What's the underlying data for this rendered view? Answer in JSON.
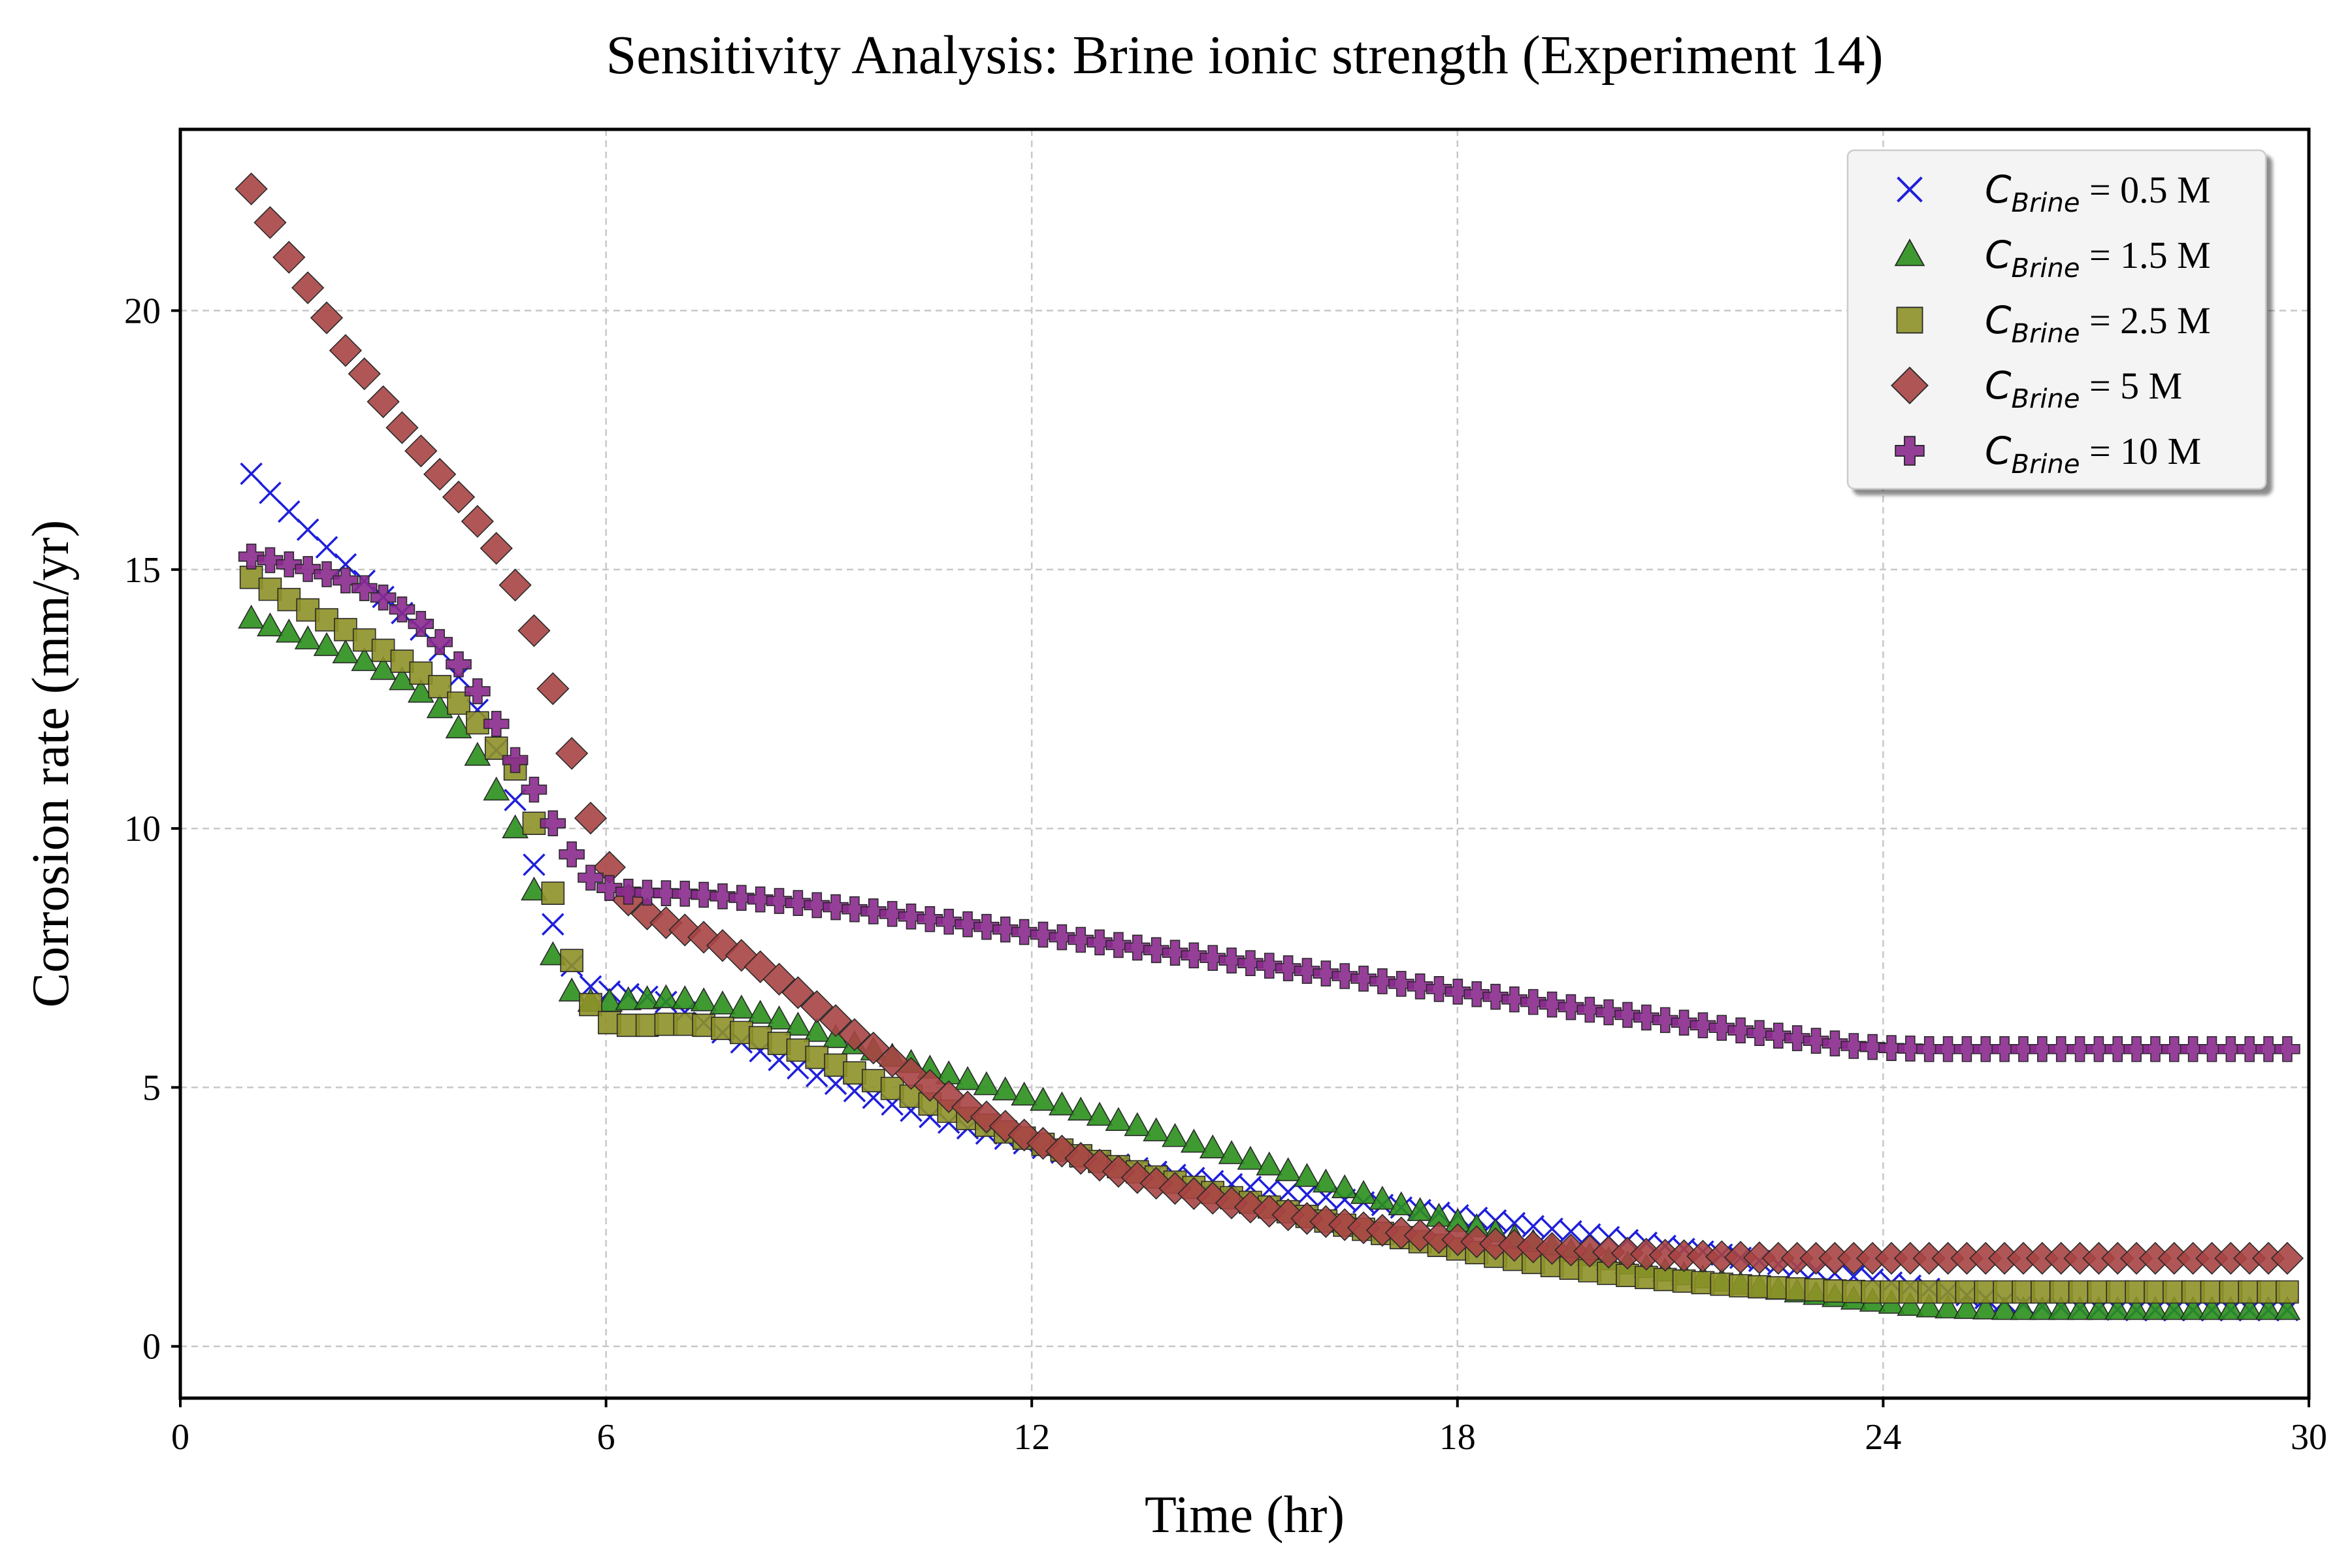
{
  "chart_data": {
    "type": "scatter",
    "title": "Sensitivity Analysis: Brine ionic strength (Experiment 14)",
    "xlabel": "Time (hr)",
    "ylabel": "Corrosion rate (mm/yr)",
    "xlim": [
      0,
      30
    ],
    "ylim": [
      -1,
      23.5
    ],
    "xticks": [
      0,
      6,
      12,
      18,
      24,
      30
    ],
    "yticks": [
      0,
      5,
      10,
      15,
      20
    ],
    "grid": true,
    "legend_position": "top-right",
    "legend_symbol": "C",
    "legend_subscript": "Brine",
    "x_start": 1,
    "x_step": 0.2657,
    "series": [
      {
        "name": "C_Brine = 0.5 M",
        "label_value": " = 0.5 M",
        "marker": "x",
        "color": "#1f1fdc",
        "values": [
          16.85,
          16.48,
          16.12,
          15.77,
          15.43,
          15.1,
          14.78,
          14.47,
          14.16,
          13.84,
          13.44,
          12.93,
          12.29,
          11.51,
          10.55,
          9.3,
          8.15,
          7.35,
          6.95,
          6.85,
          6.8,
          6.75,
          6.65,
          6.45,
          6.25,
          6.06,
          5.87,
          5.7,
          5.53,
          5.37,
          5.22,
          5.07,
          4.93,
          4.8,
          4.67,
          4.55,
          4.43,
          4.32,
          4.21,
          4.11,
          4.01,
          3.92,
          3.83,
          3.74,
          3.66,
          3.58,
          3.51,
          3.44,
          3.37,
          3.31,
          3.25,
          3.19,
          3.13,
          3.08,
          3.03,
          2.98,
          2.93,
          2.88,
          2.83,
          2.78,
          2.73,
          2.68,
          2.63,
          2.58,
          2.53,
          2.48,
          2.43,
          2.38,
          2.32,
          2.27,
          2.22,
          2.16,
          2.11,
          2.05,
          2.0,
          1.94,
          1.88,
          1.83,
          1.77,
          1.71,
          1.65,
          1.59,
          1.53,
          1.47,
          1.41,
          1.35,
          1.29,
          1.23,
          1.17,
          1.11,
          1.05,
          0.99,
          0.93,
          0.87,
          0.82,
          0.77,
          0.75,
          0.73,
          0.72,
          0.71,
          0.7,
          0.7,
          0.7,
          0.7,
          0.7,
          0.7,
          0.7,
          0.7,
          0.7
        ]
      },
      {
        "name": "C_Brine = 1.5 M",
        "label_value": " = 1.5 M",
        "marker": "triangle",
        "color": "#2a8f1c",
        "values": [
          14.05,
          13.9,
          13.78,
          13.65,
          13.52,
          13.38,
          13.23,
          13.06,
          12.86,
          12.62,
          12.32,
          11.93,
          11.4,
          10.73,
          10.0,
          8.8,
          7.55,
          6.85,
          6.65,
          6.65,
          6.68,
          6.7,
          6.72,
          6.7,
          6.66,
          6.6,
          6.52,
          6.42,
          6.31,
          6.19,
          6.07,
          5.95,
          5.83,
          5.71,
          5.59,
          5.47,
          5.36,
          5.25,
          5.14,
          5.04,
          4.94,
          4.84,
          4.74,
          4.65,
          4.55,
          4.45,
          4.35,
          4.25,
          4.15,
          4.04,
          3.93,
          3.82,
          3.71,
          3.6,
          3.49,
          3.38,
          3.27,
          3.16,
          3.05,
          2.94,
          2.83,
          2.72,
          2.61,
          2.5,
          2.4,
          2.3,
          2.2,
          2.1,
          2.0,
          1.91,
          1.82,
          1.74,
          1.66,
          1.58,
          1.51,
          1.44,
          1.37,
          1.31,
          1.25,
          1.19,
          1.14,
          1.09,
          1.04,
          0.99,
          0.95,
          0.9,
          0.86,
          0.82,
          0.78,
          0.75,
          0.73,
          0.72,
          0.71,
          0.7,
          0.7,
          0.7,
          0.7,
          0.7,
          0.7,
          0.7,
          0.7,
          0.7,
          0.7,
          0.7,
          0.7,
          0.7,
          0.7,
          0.7,
          0.7
        ]
      },
      {
        "name": "C_Brine = 2.5 M",
        "label_value": " = 2.5 M",
        "marker": "square",
        "color": "#8e9127",
        "values": [
          14.85,
          14.62,
          14.42,
          14.22,
          14.03,
          13.84,
          13.64,
          13.44,
          13.23,
          13.0,
          12.74,
          12.42,
          12.04,
          11.55,
          11.15,
          10.1,
          8.75,
          7.45,
          6.6,
          6.25,
          6.2,
          6.2,
          6.22,
          6.22,
          6.2,
          6.14,
          6.06,
          5.96,
          5.85,
          5.72,
          5.58,
          5.43,
          5.28,
          5.13,
          4.98,
          4.83,
          4.68,
          4.54,
          4.4,
          4.27,
          4.14,
          4.02,
          3.9,
          3.79,
          3.68,
          3.57,
          3.47,
          3.37,
          3.27,
          3.17,
          3.07,
          2.97,
          2.87,
          2.78,
          2.69,
          2.6,
          2.51,
          2.42,
          2.34,
          2.26,
          2.18,
          2.1,
          2.02,
          1.95,
          1.88,
          1.81,
          1.74,
          1.68,
          1.62,
          1.56,
          1.51,
          1.46,
          1.41,
          1.37,
          1.33,
          1.29,
          1.26,
          1.23,
          1.2,
          1.17,
          1.15,
          1.13,
          1.11,
          1.09,
          1.07,
          1.06,
          1.05,
          1.05,
          1.05,
          1.05,
          1.05,
          1.05,
          1.05,
          1.05,
          1.05,
          1.05,
          1.05,
          1.05,
          1.05,
          1.05,
          1.05,
          1.05,
          1.05,
          1.05,
          1.05,
          1.05,
          1.05,
          1.05,
          1.05
        ]
      },
      {
        "name": "C_Brine = 5 M",
        "label_value": " = 5 M",
        "marker": "diamond",
        "color": "#a84444",
        "values": [
          22.35,
          21.7,
          21.03,
          20.44,
          19.86,
          19.23,
          18.78,
          18.24,
          17.74,
          17.29,
          16.84,
          16.4,
          15.93,
          15.41,
          14.7,
          13.82,
          12.7,
          11.45,
          10.2,
          9.25,
          8.62,
          8.35,
          8.18,
          8.04,
          7.9,
          7.74,
          7.55,
          7.33,
          7.09,
          6.83,
          6.56,
          6.29,
          6.02,
          5.76,
          5.51,
          5.27,
          5.04,
          4.82,
          4.62,
          4.43,
          4.25,
          4.08,
          3.92,
          3.77,
          3.63,
          3.5,
          3.38,
          3.26,
          3.15,
          3.05,
          2.95,
          2.86,
          2.77,
          2.69,
          2.61,
          2.54,
          2.47,
          2.41,
          2.35,
          2.29,
          2.24,
          2.19,
          2.14,
          2.1,
          2.06,
          2.02,
          1.98,
          1.95,
          1.92,
          1.89,
          1.86,
          1.84,
          1.82,
          1.8,
          1.78,
          1.76,
          1.75,
          1.74,
          1.73,
          1.72,
          1.71,
          1.7,
          1.7,
          1.7,
          1.7,
          1.7,
          1.7,
          1.7,
          1.7,
          1.7,
          1.7,
          1.7,
          1.7,
          1.7,
          1.7,
          1.7,
          1.7,
          1.7,
          1.7,
          1.7,
          1.7,
          1.7,
          1.7,
          1.7,
          1.7,
          1.7,
          1.7,
          1.7,
          1.7
        ]
      },
      {
        "name": "C_Brine = 10 M",
        "label_value": " = 10 M",
        "marker": "plus",
        "color": "#8a2a8e",
        "values": [
          15.25,
          15.18,
          15.1,
          15.01,
          14.91,
          14.79,
          14.64,
          14.46,
          14.23,
          13.95,
          13.6,
          13.17,
          12.65,
          12.02,
          11.32,
          10.75,
          10.1,
          9.5,
          9.05,
          8.85,
          8.78,
          8.76,
          8.75,
          8.74,
          8.72,
          8.69,
          8.66,
          8.63,
          8.6,
          8.56,
          8.52,
          8.48,
          8.44,
          8.4,
          8.35,
          8.3,
          8.25,
          8.2,
          8.15,
          8.1,
          8.05,
          8.0,
          7.95,
          7.9,
          7.85,
          7.8,
          7.75,
          7.7,
          7.65,
          7.6,
          7.55,
          7.5,
          7.45,
          7.4,
          7.35,
          7.3,
          7.25,
          7.2,
          7.15,
          7.1,
          7.05,
          7.0,
          6.95,
          6.9,
          6.85,
          6.8,
          6.75,
          6.7,
          6.65,
          6.6,
          6.55,
          6.5,
          6.45,
          6.4,
          6.35,
          6.3,
          6.25,
          6.2,
          6.15,
          6.1,
          6.05,
          6.0,
          5.95,
          5.9,
          5.85,
          5.8,
          5.78,
          5.76,
          5.75,
          5.74,
          5.74,
          5.74,
          5.74,
          5.74,
          5.74,
          5.74,
          5.74,
          5.74,
          5.74,
          5.74,
          5.74,
          5.74,
          5.74,
          5.74,
          5.74,
          5.74,
          5.74,
          5.74,
          5.74
        ]
      }
    ]
  }
}
